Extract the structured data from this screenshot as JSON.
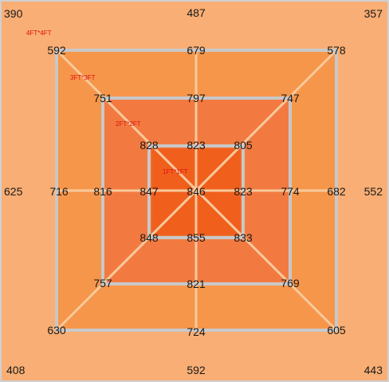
{
  "outer": {
    "top_left": "390",
    "top_center": "487",
    "top_right": "357",
    "middle_left": "625",
    "middle_right": "552",
    "bottom_left": "408",
    "bottom_center": "592",
    "bottom_right": "443"
  },
  "ring_4ft": {
    "tag": "4FT*4FT",
    "top_left": "592",
    "top_center": "679",
    "top_right": "578",
    "middle_left": "716",
    "middle_right": "682",
    "bottom_left": "630",
    "bottom_center": "724",
    "bottom_right": "605"
  },
  "ring_3ft": {
    "tag": "3FT*3FT",
    "top_left": "751",
    "top_center": "797",
    "top_right": "747",
    "middle_left": "816",
    "middle_right": "774",
    "bottom_left": "757",
    "bottom_center": "821",
    "bottom_right": "769"
  },
  "ring_2ft": {
    "tag": "2FT*2FT",
    "top_left": "828",
    "top_center": "823",
    "top_right": "805",
    "middle_left": "847",
    "middle_right": "823",
    "bottom_left": "848",
    "bottom_center": "855",
    "bottom_right": "833"
  },
  "ring_1ft": {
    "tag": "1FT*1FT",
    "center": "846"
  },
  "colors": {
    "outer_fill": "#f8ae74",
    "ring_4ft_fill": "#f6964a",
    "ring_3ft_fill": "#f27a40",
    "ring_2ft_fill": "#f06a2e",
    "ring_1ft_fill": "#f05f1c",
    "frame": "#c8c8c8",
    "spoke": "#f9c99c",
    "tag_text": "#e01010"
  }
}
